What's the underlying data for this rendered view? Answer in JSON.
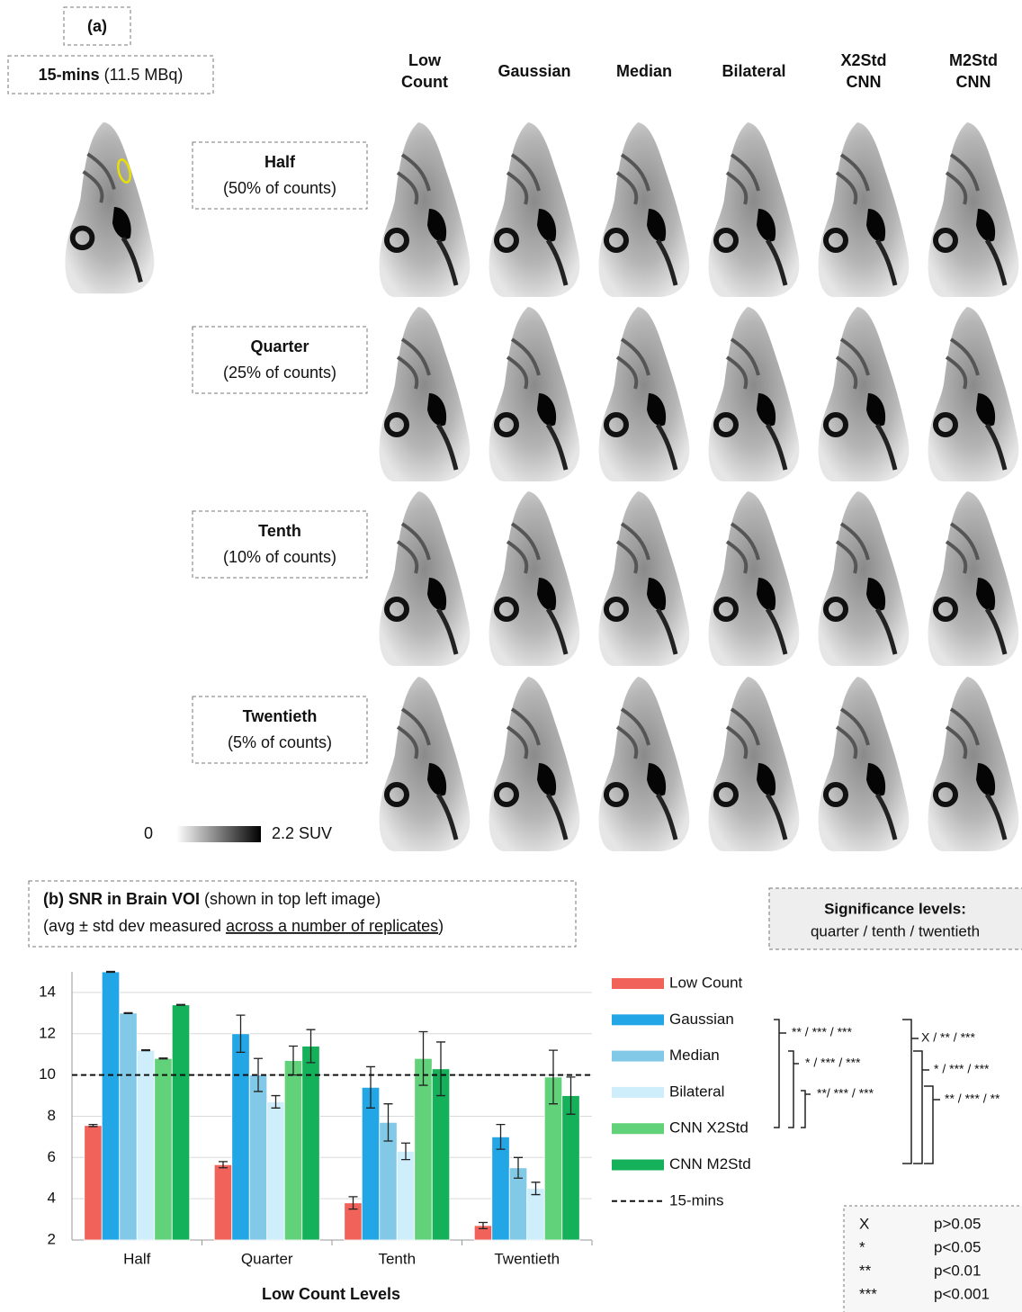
{
  "panel_a": {
    "label": "(a)",
    "reference": {
      "title": "15-mins",
      "detail": "(11.5 MBq)"
    },
    "columns": [
      [
        "Low",
        "Count"
      ],
      [
        "Gaussian"
      ],
      [
        "Median"
      ],
      [
        "Bilateral"
      ],
      [
        "X2Std",
        "CNN"
      ],
      [
        "M2Std",
        "CNN"
      ]
    ],
    "rows": [
      {
        "name": "Half",
        "detail": "(50% of counts)"
      },
      {
        "name": "Quarter",
        "detail": "(25% of counts)"
      },
      {
        "name": "Tenth",
        "detail": "(10% of counts)"
      },
      {
        "name": "Twentieth",
        "detail": "(5% of counts)"
      }
    ],
    "colorbar_labels": [
      "0",
      "2.2 SUV"
    ]
  },
  "chart_data": {
    "type": "bar",
    "title": "(b) SNR in Brain VOI",
    "title_note": "(shown in top left image)",
    "subtitle_parts": [
      "(avg ± std dev measured ",
      "across a number of replicates",
      ")"
    ],
    "x_label": "Low Count Levels",
    "categories": [
      "Half",
      "Quarter",
      "Tenth",
      "Twentieth"
    ],
    "series": [
      {
        "name": "Low Count",
        "color": "#f0625a",
        "values": [
          7.55,
          5.65,
          3.8,
          2.7
        ],
        "errors": [
          0.05,
          0.15,
          0.3,
          0.15
        ]
      },
      {
        "name": "Gaussian",
        "color": "#23a6e6",
        "values": [
          15.0,
          12.0,
          9.4,
          7.0
        ],
        "errors": [
          0.02,
          0.9,
          1.0,
          0.6
        ]
      },
      {
        "name": "Median",
        "color": "#82c9e8",
        "values": [
          13.0,
          10.0,
          7.7,
          5.5
        ],
        "errors": [
          0.02,
          0.8,
          0.9,
          0.5
        ]
      },
      {
        "name": "Bilateral",
        "color": "#cdeefa",
        "values": [
          11.2,
          8.7,
          6.3,
          4.5
        ],
        "errors": [
          0.02,
          0.3,
          0.4,
          0.3
        ]
      },
      {
        "name": "CNN X2Std",
        "color": "#62d27a",
        "values": [
          10.8,
          10.7,
          10.8,
          9.9
        ],
        "errors": [
          0.02,
          0.7,
          1.3,
          1.3
        ]
      },
      {
        "name": "CNN M2Std",
        "color": "#14b15a",
        "values": [
          13.4,
          11.4,
          10.3,
          9.0
        ],
        "errors": [
          0.02,
          0.8,
          1.3,
          0.9
        ]
      }
    ],
    "reference_line": {
      "name": "15-mins",
      "value": 10
    },
    "ylim": [
      2,
      15
    ],
    "yticks": [
      2,
      4,
      6,
      8,
      10,
      12,
      14
    ],
    "grid": true,
    "legend": "right"
  },
  "significance": {
    "title": "Significance levels:",
    "subtitle": "quarter / tenth / twentieth",
    "left_brackets": [
      "** / *** / ***",
      "* / *** / ***",
      "**/ *** / ***"
    ],
    "right_brackets": [
      "X / ** / ***",
      "* / *** / ***",
      "** / *** / **"
    ],
    "key": [
      {
        "symbol": "X",
        "meaning": "p>0.05"
      },
      {
        "symbol": "*",
        "meaning": "p<0.05"
      },
      {
        "symbol": "**",
        "meaning": "p<0.01"
      },
      {
        "symbol": "***",
        "meaning": "p<0.001"
      }
    ]
  }
}
